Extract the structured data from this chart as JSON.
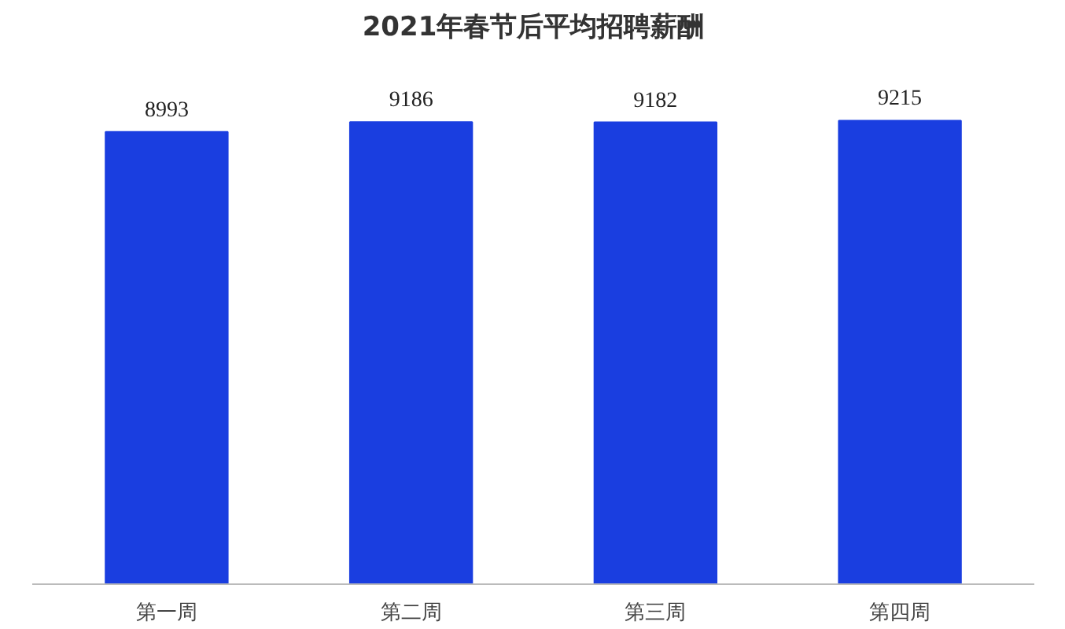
{
  "chart_data": {
    "type": "bar",
    "title": "2021年春节后平均招聘薪酬",
    "categories": [
      "第一周",
      "第二周",
      "第三周",
      "第四周"
    ],
    "values": [
      8993,
      9186,
      9182,
      9215
    ],
    "color": "#1a3ee0",
    "tick_labels": "x",
    "data_labels": true
  }
}
